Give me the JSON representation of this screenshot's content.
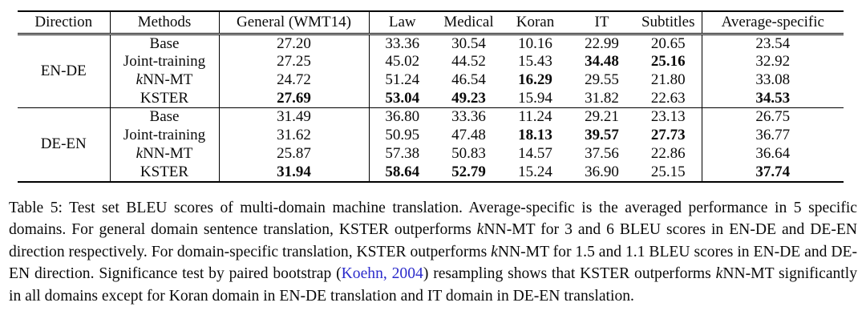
{
  "link_color": "#2b2bcb",
  "table": {
    "headers": [
      "Direction",
      "Methods",
      "General (WMT14)",
      "Law",
      "Medical",
      "Koran",
      "IT",
      "Subtitles",
      "Average-specific"
    ],
    "groups": [
      {
        "direction": "EN-DE",
        "rows": [
          {
            "method": "Base",
            "italic_first": false,
            "values": [
              "27.20",
              "33.36",
              "30.54",
              "10.16",
              "22.99",
              "20.65",
              "23.54"
            ],
            "bold": []
          },
          {
            "method": "Joint-training",
            "italic_first": false,
            "values": [
              "27.25",
              "45.02",
              "44.52",
              "15.43",
              "34.48",
              "25.16",
              "32.92"
            ],
            "bold": [
              4,
              5
            ]
          },
          {
            "method": "kNN-MT",
            "italic_first": true,
            "values": [
              "24.72",
              "51.24",
              "46.54",
              "16.29",
              "29.55",
              "21.80",
              "33.08"
            ],
            "bold": [
              3
            ]
          },
          {
            "method": "KSTER",
            "italic_first": false,
            "values": [
              "27.69",
              "53.04",
              "49.23",
              "15.94",
              "31.82",
              "22.63",
              "34.53"
            ],
            "bold": [
              0,
              1,
              2,
              6
            ]
          }
        ]
      },
      {
        "direction": "DE-EN",
        "rows": [
          {
            "method": "Base",
            "italic_first": false,
            "values": [
              "31.49",
              "36.80",
              "33.36",
              "11.24",
              "29.21",
              "23.13",
              "26.75"
            ],
            "bold": []
          },
          {
            "method": "Joint-training",
            "italic_first": false,
            "values": [
              "31.62",
              "50.95",
              "47.48",
              "18.13",
              "39.57",
              "27.73",
              "36.77"
            ],
            "bold": [
              3,
              4,
              5
            ]
          },
          {
            "method": "kNN-MT",
            "italic_first": true,
            "values": [
              "25.87",
              "57.38",
              "50.83",
              "14.57",
              "37.56",
              "22.86",
              "36.64"
            ],
            "bold": []
          },
          {
            "method": "KSTER",
            "italic_first": false,
            "values": [
              "31.94",
              "58.64",
              "52.79",
              "15.24",
              "36.90",
              "25.15",
              "37.74"
            ],
            "bold": [
              0,
              1,
              2,
              6
            ]
          }
        ]
      }
    ]
  },
  "caption": {
    "segments": [
      {
        "text": "Table 5: Test set BLEU scores of multi-domain machine translation. Average-specific is the averaged performance in 5 specific domains. For general domain sentence translation, KSTER outperforms "
      },
      {
        "text": "k",
        "style": "italic"
      },
      {
        "text": "NN-MT for 3 and 6 BLEU scores in EN-DE and DE-EN direction respectively. For domain-specific translation, KSTER outperforms "
      },
      {
        "text": "k",
        "style": "italic"
      },
      {
        "text": "NN-MT for 1.5 and 1.1 BLEU scores in EN-DE and DE-EN direction. Significance test by paired bootstrap ("
      },
      {
        "text": "Koehn, 2004",
        "style": "link"
      },
      {
        "text": ") resampling shows that KSTER outperforms "
      },
      {
        "text": "k",
        "style": "italic"
      },
      {
        "text": "NN-MT significantly in all domains except for Koran domain in EN-DE translation and IT domain in DE-EN translation."
      }
    ]
  }
}
